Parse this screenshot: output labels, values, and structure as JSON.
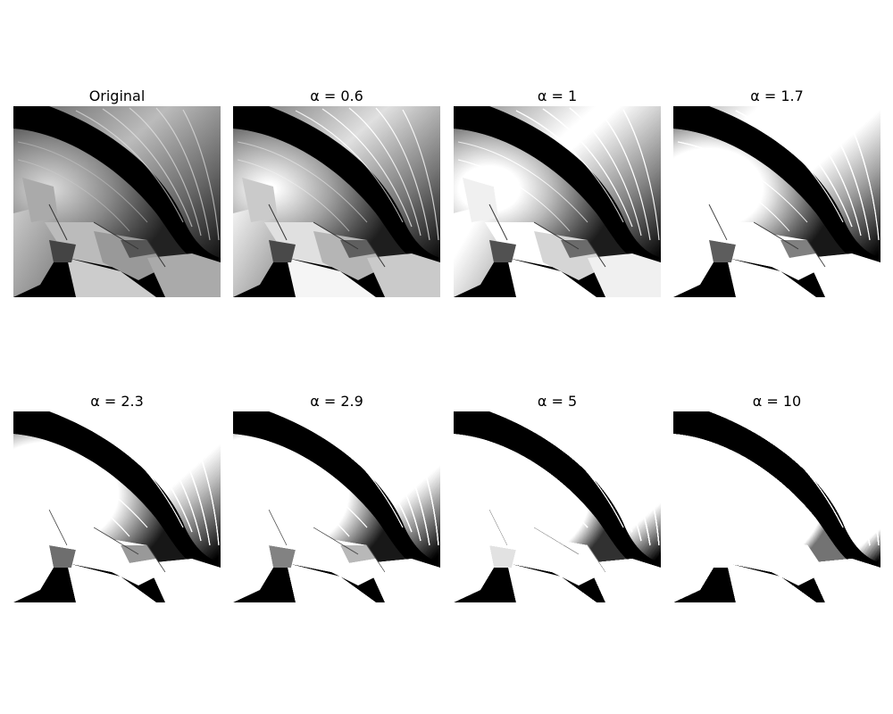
{
  "panels": [
    {
      "title": "Original",
      "alpha": null
    },
    {
      "title": "α = 0.6",
      "alpha": 0.6
    },
    {
      "title": "α = 1",
      "alpha": 1
    },
    {
      "title": "α = 1.7",
      "alpha": 1.7
    },
    {
      "title": "α = 2.3",
      "alpha": 2.3
    },
    {
      "title": "α = 2.9",
      "alpha": 2.9
    },
    {
      "title": "α = 5",
      "alpha": 5
    },
    {
      "title": "α = 10",
      "alpha": 10
    }
  ]
}
